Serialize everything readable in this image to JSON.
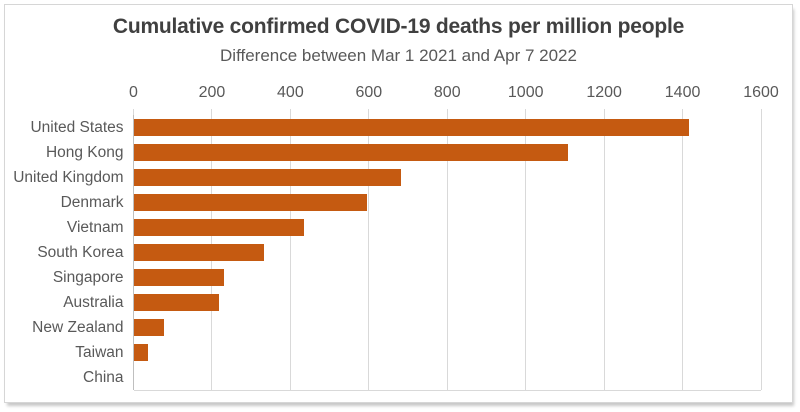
{
  "chart": {
    "title": "Cumulative confirmed COVID-19 deaths per million people",
    "subtitle": "Difference between Mar 1 2021 and Apr 7 2022"
  },
  "chart_data": {
    "type": "bar",
    "orientation": "horizontal",
    "title": "Cumulative confirmed COVID-19 deaths per million people",
    "subtitle": "Difference between Mar 1 2021 and Apr 7 2022",
    "categories": [
      "United States",
      "Hong Kong",
      "United Kingdom",
      "Denmark",
      "Vietnam",
      "South Korea",
      "Singapore",
      "Australia",
      "New Zealand",
      "Taiwan",
      "China"
    ],
    "values": [
      1417,
      1107,
      683,
      596,
      436,
      333,
      231,
      217,
      78,
      36,
      0
    ],
    "xlim": [
      0,
      1600
    ],
    "xticks": [
      0,
      200,
      400,
      600,
      800,
      1000,
      1200,
      1400,
      1600
    ],
    "axis_position": "top",
    "grid": true,
    "legend": "none",
    "colors": {
      "bar": "#C55A11",
      "title_text": "#404040",
      "axis_text": "#595959",
      "gridline": "#D9D9D9",
      "zero_line": "#BFBFBF",
      "panel_border": "#D6D6D6"
    }
  }
}
